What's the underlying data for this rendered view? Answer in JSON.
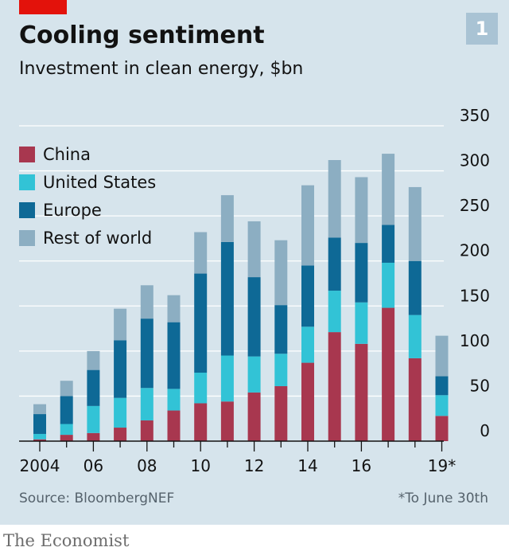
{
  "header": {
    "title": "Cooling sentiment",
    "subtitle": "Investment in clean energy, $bn",
    "chart_number": "1"
  },
  "footer": {
    "source": "Source: BloombergNEF",
    "footnote": "*To June 30th",
    "brand": "The Economist"
  },
  "colors": {
    "china": "#a8374f",
    "united_states": "#32c3d6",
    "europe": "#0e6996",
    "rest_of_world": "#8caec2",
    "grid": "#ffffff",
    "axis": "#121212"
  },
  "chart_data": {
    "type": "bar",
    "stacked": true,
    "categories": [
      "2004",
      "2005",
      "2006",
      "2007",
      "2008",
      "2009",
      "2010",
      "2011",
      "2012",
      "2013",
      "2014",
      "2015",
      "2016",
      "2017",
      "2018",
      "2019*"
    ],
    "x_tick_labels": [
      "2004",
      "",
      "06",
      "",
      "08",
      "",
      "10",
      "",
      "12",
      "",
      "14",
      "",
      "16",
      "",
      "",
      "19*"
    ],
    "series": [
      {
        "name": "China",
        "color": "#a8374f",
        "values": [
          2,
          7,
          9,
          15,
          23,
          34,
          42,
          44,
          54,
          61,
          87,
          121,
          108,
          148,
          92,
          28
        ]
      },
      {
        "name": "United States",
        "color": "#32c3d6",
        "values": [
          6,
          12,
          30,
          33,
          36,
          24,
          34,
          51,
          40,
          36,
          40,
          46,
          46,
          50,
          48,
          23
        ]
      },
      {
        "name": "Europe",
        "color": "#0e6996",
        "values": [
          22,
          31,
          40,
          64,
          77,
          74,
          110,
          126,
          88,
          54,
          68,
          59,
          66,
          42,
          60,
          21
        ]
      },
      {
        "name": "Rest of world",
        "color": "#8caec2",
        "values": [
          11,
          17,
          21,
          35,
          37,
          30,
          46,
          52,
          62,
          72,
          89,
          86,
          73,
          79,
          82,
          45
        ]
      }
    ],
    "ylim": [
      0,
      350
    ],
    "yticks": [
      0,
      50,
      100,
      150,
      200,
      250,
      300,
      350
    ],
    "y_axis_side": "right",
    "grid": true,
    "legend_placement": "top-left",
    "title": "Cooling sentiment",
    "subtitle": "Investment in clean energy, $bn"
  }
}
